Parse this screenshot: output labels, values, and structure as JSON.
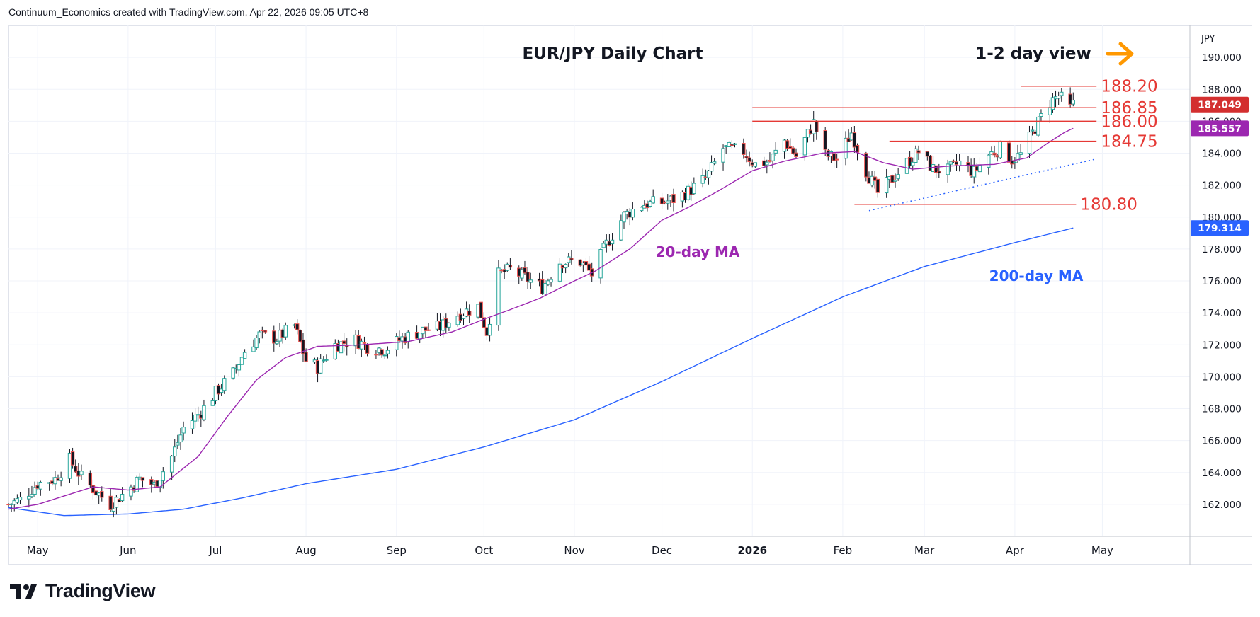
{
  "header": {
    "attribution": "Continuum_Economics created with TradingView.com, Apr 22, 2026 09:05 UTC+8"
  },
  "footer": {
    "logo_text": "TradingView"
  },
  "colors": {
    "up": "#26a69a",
    "down": "#ef5350",
    "body_up": "#ffffff",
    "body_down": "#131722",
    "ma20": "#9c27b0",
    "ma200": "#2962ff",
    "level": "#e53935",
    "arrow": "#ff9800"
  },
  "chart_data": {
    "type": "candlestick",
    "title": "EUR/JPY Daily Chart",
    "view_label": "1-2 day view",
    "currency_label": "JPY",
    "ylim": [
      160.0,
      192.0
    ],
    "y_ticks": [
      162,
      164,
      166,
      168,
      170,
      172,
      174,
      176,
      178,
      180,
      182,
      184,
      186,
      188,
      190
    ],
    "y_tick_labels": [
      "162.000",
      "164.000",
      "166.000",
      "168.000",
      "170.000",
      "172.000",
      "174.000",
      "176.000",
      "178.000",
      "180.000",
      "182.000",
      "184.000",
      "186.000",
      "188.000",
      "190.000"
    ],
    "x_range": [
      "2025-04-21",
      "2026-05-31"
    ],
    "x_ticks": [
      {
        "label": "May",
        "date": "2025-05-01"
      },
      {
        "label": "Jun",
        "date": "2025-06-01"
      },
      {
        "label": "Jul",
        "date": "2025-07-01"
      },
      {
        "label": "Aug",
        "date": "2025-08-01"
      },
      {
        "label": "Sep",
        "date": "2025-09-01"
      },
      {
        "label": "Oct",
        "date": "2025-10-01"
      },
      {
        "label": "Nov",
        "date": "2025-11-01"
      },
      {
        "label": "Dec",
        "date": "2025-12-01"
      },
      {
        "label": "2026",
        "date": "2026-01-01"
      },
      {
        "label": "Feb",
        "date": "2026-02-01"
      },
      {
        "label": "Mar",
        "date": "2026-03-01"
      },
      {
        "label": "Apr",
        "date": "2026-04-01"
      },
      {
        "label": "May",
        "date": "2026-05-01"
      }
    ],
    "close_path": [
      [
        "2025-04-21",
        162.0
      ],
      [
        "2025-04-25",
        162.3
      ],
      [
        "2025-05-01",
        163.3
      ],
      [
        "2025-05-07",
        163.6
      ],
      [
        "2025-05-12",
        164.8
      ],
      [
        "2025-05-16",
        163.7
      ],
      [
        "2025-05-21",
        162.8
      ],
      [
        "2025-05-26",
        162.0
      ],
      [
        "2025-05-30",
        162.6
      ],
      [
        "2025-06-05",
        163.6
      ],
      [
        "2025-06-10",
        163.2
      ],
      [
        "2025-06-16",
        165.0
      ],
      [
        "2025-06-20",
        166.8
      ],
      [
        "2025-06-26",
        167.8
      ],
      [
        "2025-07-01",
        169.0
      ],
      [
        "2025-07-07",
        170.2
      ],
      [
        "2025-07-11",
        171.6
      ],
      [
        "2025-07-16",
        172.6
      ],
      [
        "2025-07-22",
        172.4
      ],
      [
        "2025-07-28",
        173.2
      ],
      [
        "2025-08-01",
        171.0
      ],
      [
        "2025-08-05",
        170.6
      ],
      [
        "2025-08-11",
        172.0
      ],
      [
        "2025-08-18",
        172.3
      ],
      [
        "2025-08-22",
        171.9
      ],
      [
        "2025-08-28",
        171.7
      ],
      [
        "2025-09-03",
        172.4
      ],
      [
        "2025-09-10",
        172.9
      ],
      [
        "2025-09-16",
        173.1
      ],
      [
        "2025-09-22",
        173.9
      ],
      [
        "2025-09-29",
        174.4
      ],
      [
        "2025-10-02",
        172.8
      ],
      [
        "2025-10-06",
        176.4
      ],
      [
        "2025-10-10",
        176.7
      ],
      [
        "2025-10-16",
        176.1
      ],
      [
        "2025-10-21",
        175.6
      ],
      [
        "2025-10-27",
        177.2
      ],
      [
        "2025-11-03",
        177.2
      ],
      [
        "2025-11-07",
        176.4
      ],
      [
        "2025-11-12",
        178.3
      ],
      [
        "2025-11-18",
        180.1
      ],
      [
        "2025-11-24",
        180.8
      ],
      [
        "2025-12-01",
        180.9
      ],
      [
        "2025-12-05",
        181.1
      ],
      [
        "2025-12-10",
        181.6
      ],
      [
        "2025-12-16",
        182.4
      ],
      [
        "2025-12-22",
        184.3
      ],
      [
        "2025-12-29",
        184.1
      ],
      [
        "2026-01-02",
        183.3
      ],
      [
        "2026-01-07",
        183.5
      ],
      [
        "2026-01-12",
        184.8
      ],
      [
        "2026-01-16",
        183.8
      ],
      [
        "2026-01-22",
        185.9
      ],
      [
        "2026-01-26",
        183.9
      ],
      [
        "2026-01-30",
        183.6
      ],
      [
        "2026-02-04",
        185.3
      ],
      [
        "2026-02-09",
        182.9
      ],
      [
        "2026-02-13",
        181.5
      ],
      [
        "2026-02-18",
        182.4
      ],
      [
        "2026-02-23",
        183.4
      ],
      [
        "2026-02-27",
        184.1
      ],
      [
        "2026-03-04",
        183.0
      ],
      [
        "2026-03-09",
        182.9
      ],
      [
        "2026-03-13",
        183.4
      ],
      [
        "2026-03-18",
        182.8
      ],
      [
        "2026-03-23",
        183.9
      ],
      [
        "2026-03-27",
        184.3
      ],
      [
        "2026-03-31",
        183.6
      ],
      [
        "2026-04-03",
        183.9
      ],
      [
        "2026-04-08",
        185.6
      ],
      [
        "2026-04-13",
        187.2
      ],
      [
        "2026-04-16",
        187.6
      ],
      [
        "2026-04-20",
        186.8
      ],
      [
        "2026-04-21",
        187.05
      ]
    ],
    "ma20": [
      [
        "2025-04-21",
        161.7
      ],
      [
        "2025-05-01",
        162.0
      ],
      [
        "2025-05-20",
        163.1
      ],
      [
        "2025-06-01",
        162.9
      ],
      [
        "2025-06-12",
        163.1
      ],
      [
        "2025-06-25",
        165.0
      ],
      [
        "2025-07-05",
        167.5
      ],
      [
        "2025-07-15",
        169.8
      ],
      [
        "2025-07-25",
        171.2
      ],
      [
        "2025-08-05",
        171.9
      ],
      [
        "2025-08-20",
        172.0
      ],
      [
        "2025-09-05",
        172.2
      ],
      [
        "2025-09-20",
        172.8
      ],
      [
        "2025-10-01",
        173.6
      ],
      [
        "2025-10-10",
        174.2
      ],
      [
        "2025-10-20",
        174.9
      ],
      [
        "2025-11-01",
        176.0
      ],
      [
        "2025-11-08",
        176.6
      ],
      [
        "2025-11-20",
        178.0
      ],
      [
        "2025-12-01",
        179.8
      ],
      [
        "2025-12-10",
        180.6
      ],
      [
        "2025-12-20",
        181.6
      ],
      [
        "2026-01-01",
        182.9
      ],
      [
        "2026-01-12",
        183.5
      ],
      [
        "2026-01-25",
        184.0
      ],
      [
        "2026-02-05",
        184.1
      ],
      [
        "2026-02-15",
        183.4
      ],
      [
        "2026-02-25",
        183.0
      ],
      [
        "2026-03-10",
        183.2
      ],
      [
        "2026-03-25",
        183.3
      ],
      [
        "2026-04-05",
        183.7
      ],
      [
        "2026-04-12",
        184.6
      ],
      [
        "2026-04-18",
        185.3
      ],
      [
        "2026-04-21",
        185.557
      ]
    ],
    "ma200": [
      [
        "2025-04-21",
        161.8
      ],
      [
        "2025-05-10",
        161.3
      ],
      [
        "2025-06-01",
        161.4
      ],
      [
        "2025-06-20",
        161.7
      ],
      [
        "2025-07-10",
        162.4
      ],
      [
        "2025-08-01",
        163.3
      ],
      [
        "2025-09-01",
        164.2
      ],
      [
        "2025-10-01",
        165.6
      ],
      [
        "2025-11-01",
        167.3
      ],
      [
        "2025-12-01",
        169.7
      ],
      [
        "2026-01-01",
        172.4
      ],
      [
        "2026-02-01",
        175.0
      ],
      [
        "2026-03-01",
        176.9
      ],
      [
        "2026-04-01",
        178.4
      ],
      [
        "2026-04-21",
        179.314
      ]
    ],
    "trendline": {
      "start": [
        "2026-02-10",
        180.4
      ],
      "end": [
        "2026-04-28",
        183.6
      ],
      "style": "dotted"
    },
    "levels": [
      {
        "label": "188.20",
        "value": 188.2,
        "from": "2026-04-03",
        "to": "2026-04-29"
      },
      {
        "label": "186.85",
        "value": 186.85,
        "from": "2026-01-01",
        "to": "2026-04-29"
      },
      {
        "label": "186.00",
        "value": 186.0,
        "from": "2026-01-01",
        "to": "2026-04-29"
      },
      {
        "label": "184.75",
        "value": 184.75,
        "from": "2026-02-17",
        "to": "2026-04-29"
      },
      {
        "label": "180.80",
        "value": 180.8,
        "from": "2026-02-05",
        "to": "2026-04-22"
      }
    ],
    "series": [
      {
        "name": "20-day MA",
        "ref": "ma20"
      },
      {
        "name": "200-day MA",
        "ref": "ma200"
      }
    ],
    "price_tags": [
      {
        "label": "187.049",
        "value": 187.049,
        "color": "#d32f2f"
      },
      {
        "label": "185.557",
        "value": 185.557,
        "color": "#9c27b0"
      },
      {
        "label": "179.314",
        "value": 179.314,
        "color": "#2962ff"
      }
    ],
    "grid": true
  }
}
